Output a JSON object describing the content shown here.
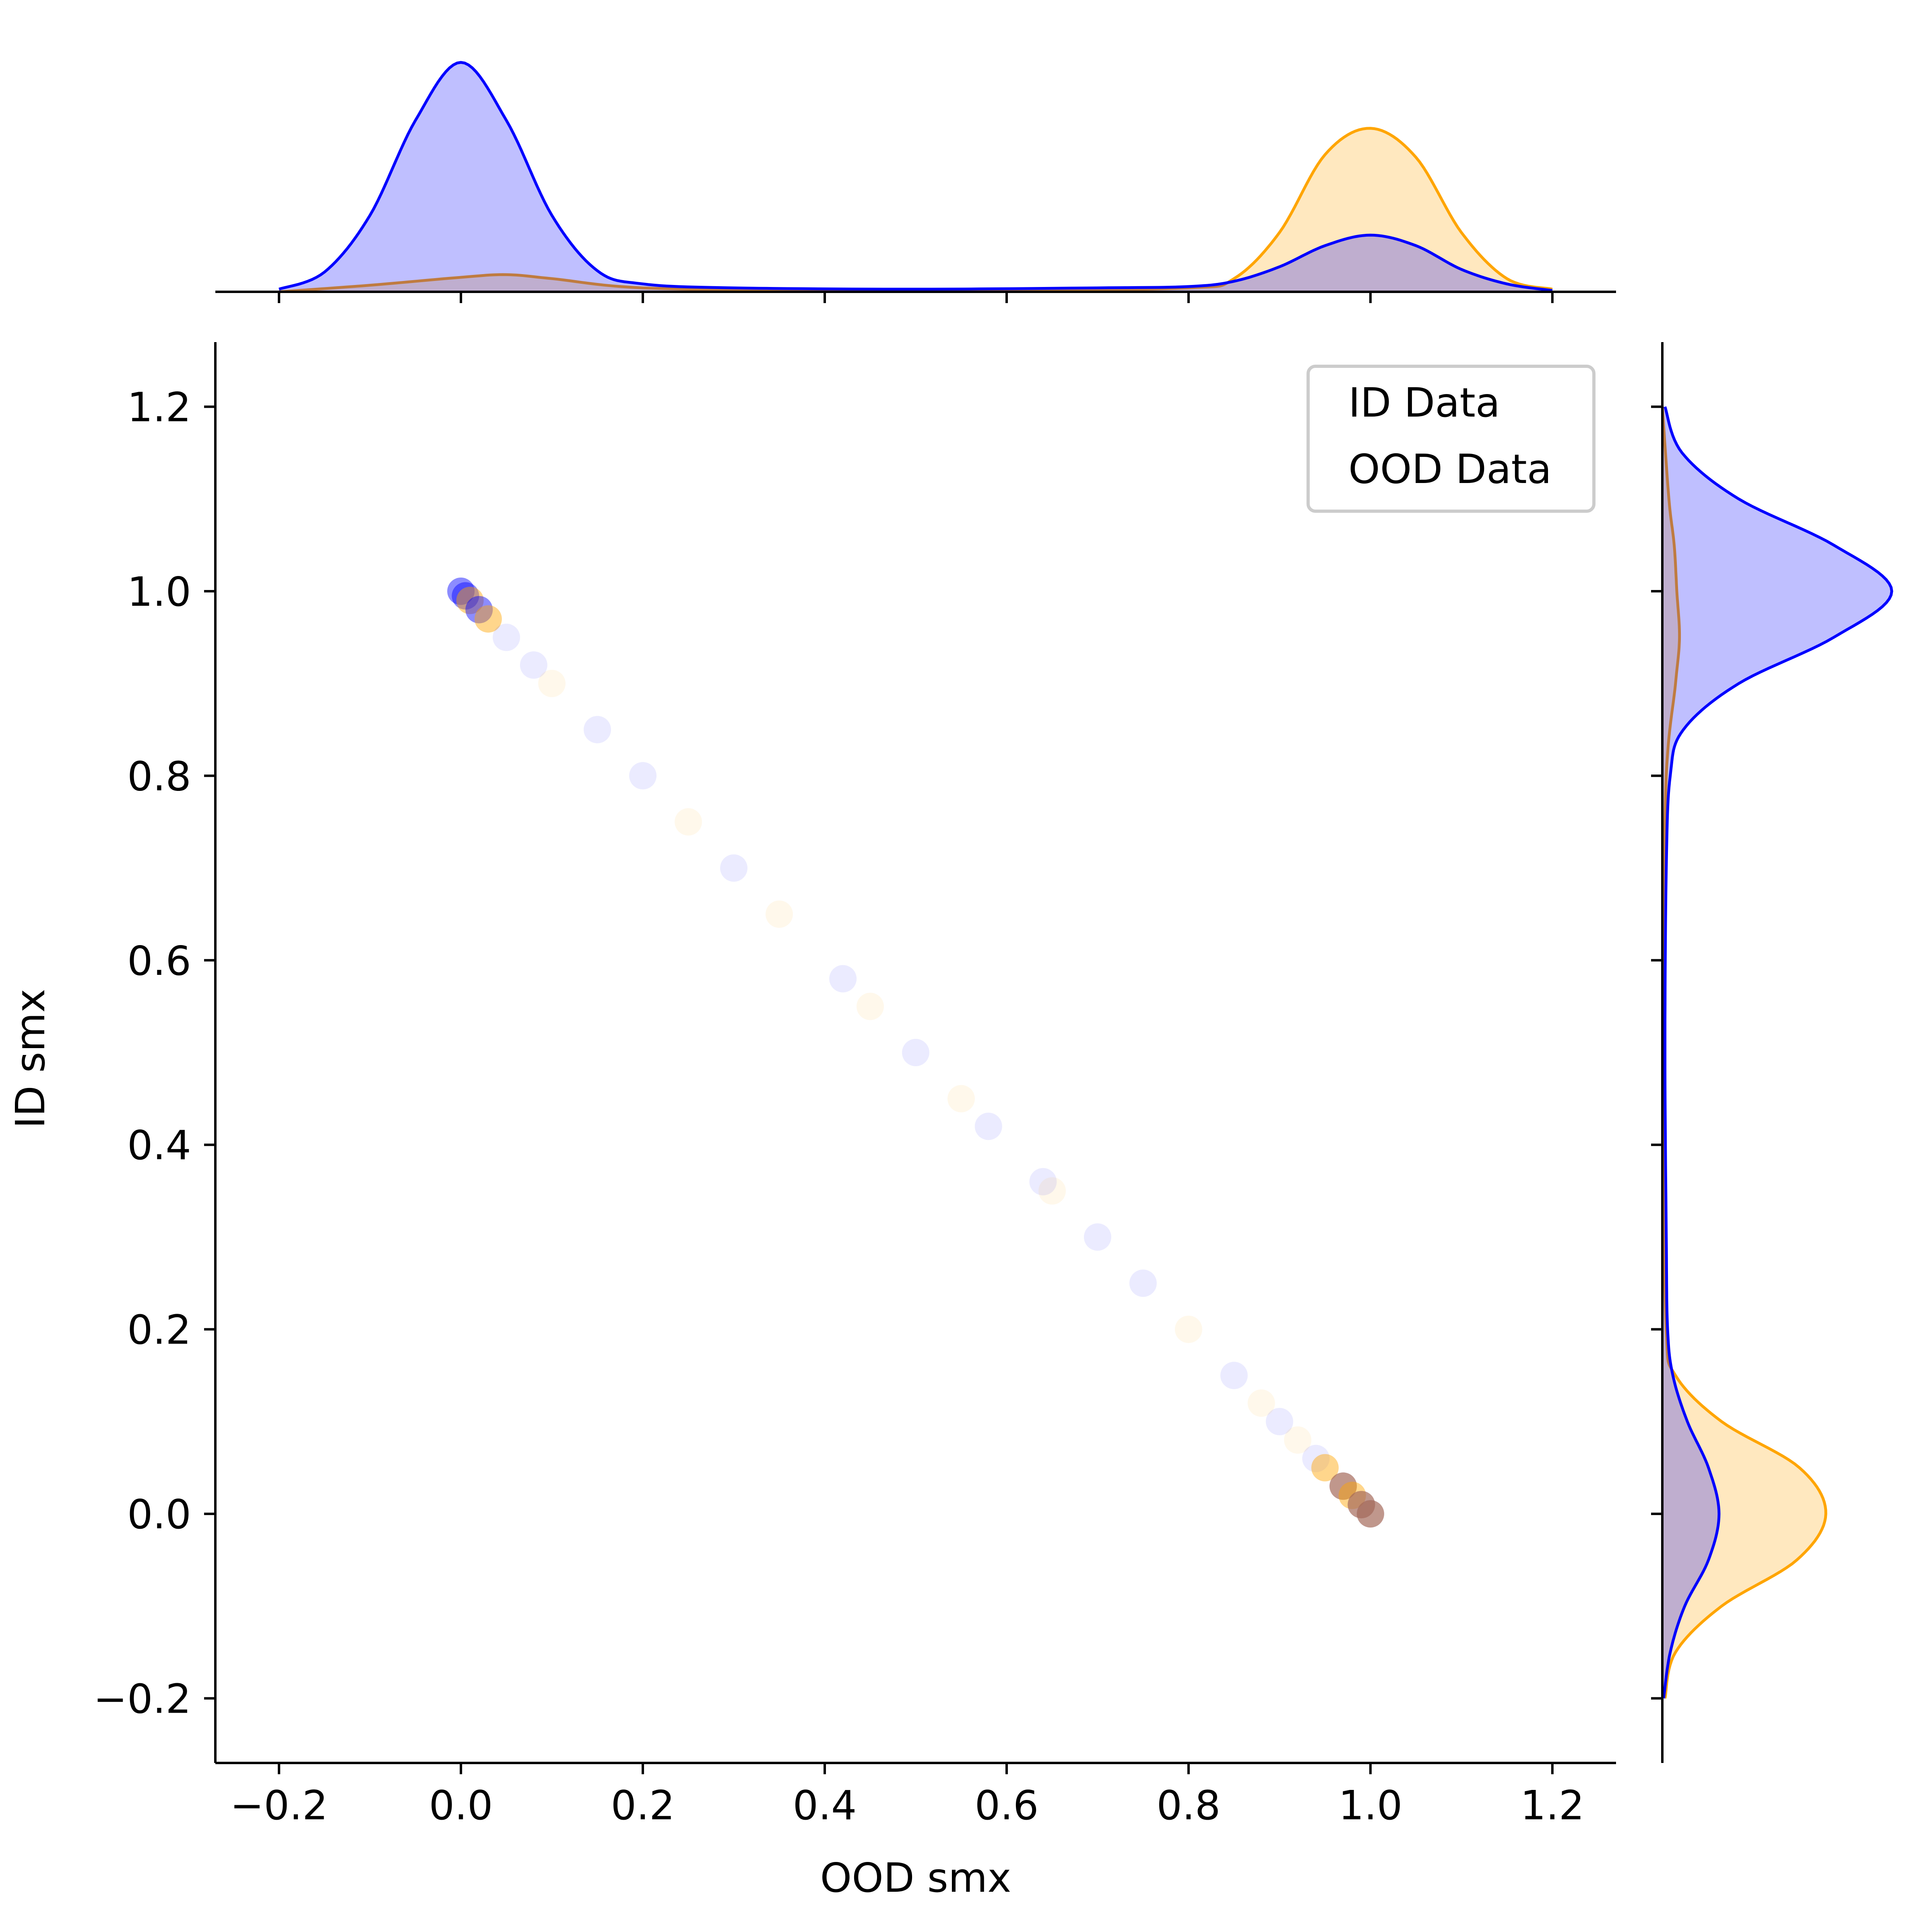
{
  "chart_data": {
    "type": "scatter",
    "subtype": "jointplot-with-kde-marginals",
    "xlabel": "OOD smx",
    "ylabel": "ID smx",
    "xlim": [
      -0.27,
      1.27
    ],
    "ylim": [
      -0.27,
      1.27
    ],
    "x_ticks": [
      -0.2,
      0.0,
      0.2,
      0.4,
      0.6,
      0.8,
      1.0,
      1.2
    ],
    "y_ticks": [
      -0.2,
      0.0,
      0.2,
      0.4,
      0.6,
      0.8,
      1.0,
      1.2
    ],
    "x_tick_labels": [
      "−0.2",
      "0.0",
      "0.2",
      "0.4",
      "0.6",
      "0.8",
      "1.0",
      "1.2"
    ],
    "y_tick_labels": [
      "−0.2",
      "0.0",
      "0.2",
      "0.4",
      "0.6",
      "0.8",
      "1.0",
      "1.2"
    ],
    "grid": false,
    "legend": {
      "position": "top-right",
      "text_colored_by_series": true
    },
    "scatter_relation": "y = 1 - x (points along a descending diagonal from (0,1) to (1,0))",
    "series": [
      {
        "name": "ID Data",
        "color": "#0000ff",
        "fill": "rgba(0,0,255,0.25)",
        "points": [
          [
            0.0,
            1.0
          ],
          [
            0.005,
            0.995
          ],
          [
            0.02,
            0.98
          ],
          [
            0.05,
            0.95
          ],
          [
            0.08,
            0.92
          ],
          [
            0.15,
            0.85
          ],
          [
            0.2,
            0.8
          ],
          [
            0.3,
            0.7
          ],
          [
            0.42,
            0.58
          ],
          [
            0.5,
            0.5
          ],
          [
            0.58,
            0.42
          ],
          [
            0.64,
            0.36
          ],
          [
            0.7,
            0.3
          ],
          [
            0.75,
            0.25
          ],
          [
            0.85,
            0.15
          ],
          [
            0.9,
            0.1
          ],
          [
            0.94,
            0.06
          ],
          [
            0.97,
            0.03
          ],
          [
            0.99,
            0.01
          ],
          [
            1.0,
            0.0
          ]
        ],
        "marginal_x_kde": {
          "x": [
            -0.2,
            -0.15,
            -0.1,
            -0.05,
            0.0,
            0.05,
            0.1,
            0.15,
            0.2,
            0.3,
            0.5,
            0.7,
            0.8,
            0.85,
            0.9,
            0.95,
            1.0,
            1.05,
            1.1,
            1.15,
            1.2
          ],
          "density": [
            0.2,
            1.5,
            5.8,
            13.0,
            17.4,
            13.0,
            5.8,
            1.6,
            0.6,
            0.3,
            0.2,
            0.3,
            0.4,
            0.8,
            1.9,
            3.5,
            4.3,
            3.5,
            1.7,
            0.6,
            0.1
          ]
        },
        "marginal_y_kde": {
          "y": [
            -0.2,
            -0.15,
            -0.1,
            -0.05,
            0.0,
            0.05,
            0.1,
            0.15,
            0.2,
            0.3,
            0.5,
            0.7,
            0.8,
            0.85,
            0.9,
            0.95,
            1.0,
            1.05,
            1.1,
            1.15,
            1.2
          ],
          "density": [
            0.1,
            0.6,
            1.7,
            3.5,
            4.3,
            3.5,
            1.9,
            0.8,
            0.4,
            0.3,
            0.2,
            0.3,
            0.6,
            1.6,
            5.8,
            13.0,
            17.4,
            13.0,
            5.8,
            1.5,
            0.2
          ]
        }
      },
      {
        "name": "OOD Data",
        "color": "#ffa500",
        "fill": "rgba(255,165,0,0.25)",
        "points": [
          [
            0.01,
            0.99
          ],
          [
            0.03,
            0.97
          ],
          [
            0.1,
            0.9
          ],
          [
            0.25,
            0.75
          ],
          [
            0.35,
            0.65
          ],
          [
            0.45,
            0.55
          ],
          [
            0.55,
            0.45
          ],
          [
            0.65,
            0.35
          ],
          [
            0.8,
            0.2
          ],
          [
            0.88,
            0.12
          ],
          [
            0.92,
            0.08
          ],
          [
            0.95,
            0.05
          ],
          [
            0.97,
            0.03
          ],
          [
            0.98,
            0.02
          ],
          [
            0.99,
            0.01
          ],
          [
            1.0,
            0.0
          ]
        ],
        "marginal_x_kde": {
          "x": [
            -0.2,
            -0.1,
            0.0,
            0.05,
            0.1,
            0.2,
            0.4,
            0.6,
            0.8,
            0.85,
            0.9,
            0.95,
            1.0,
            1.05,
            1.1,
            1.15,
            1.2
          ],
          "density": [
            0.0,
            0.5,
            1.1,
            1.3,
            1.0,
            0.3,
            0.1,
            0.1,
            0.3,
            1.0,
            4.5,
            10.4,
            12.4,
            10.2,
            4.5,
            1.0,
            0.2
          ]
        },
        "marginal_y_kde": {
          "y": [
            -0.2,
            -0.15,
            -0.1,
            -0.05,
            0.0,
            0.05,
            0.1,
            0.15,
            0.2,
            0.4,
            0.6,
            0.8,
            0.9,
            0.95,
            1.0,
            1.05,
            1.1,
            1.2
          ],
          "density": [
            0.2,
            1.0,
            4.5,
            10.2,
            12.4,
            10.4,
            4.5,
            1.0,
            0.3,
            0.1,
            0.1,
            0.3,
            1.0,
            1.3,
            1.1,
            0.9,
            0.5,
            0.0
          ]
        }
      }
    ]
  }
}
